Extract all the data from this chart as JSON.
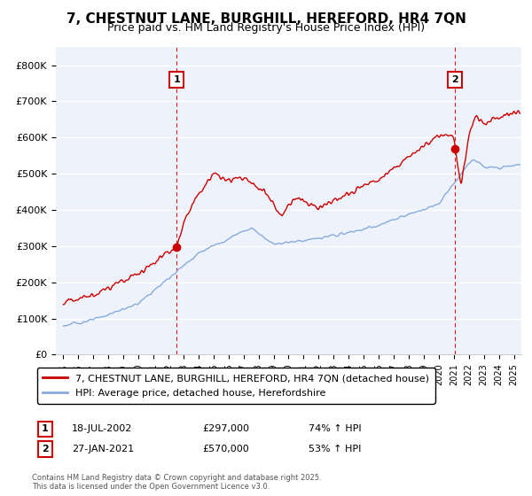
{
  "title_line1": "7, CHESTNUT LANE, BURGHILL, HEREFORD, HR4 7QN",
  "title_line2": "Price paid vs. HM Land Registry's House Price Index (HPI)",
  "ylim": [
    0,
    850000
  ],
  "yticks": [
    0,
    100000,
    200000,
    300000,
    400000,
    500000,
    600000,
    700000,
    800000
  ],
  "ytick_labels": [
    "£0",
    "£100K",
    "£200K",
    "£300K",
    "£400K",
    "£500K",
    "£600K",
    "£700K",
    "£800K"
  ],
  "xlim_start": 1994.5,
  "xlim_end": 2025.5,
  "background_color": "#eef3fb",
  "grid_color": "#ffffff",
  "house_color": "#cc0000",
  "hpi_color": "#88aadd",
  "sale1_date": 2002.54,
  "sale1_price": 297000,
  "sale1_label": "1",
  "sale2_date": 2021.07,
  "sale2_price": 570000,
  "sale2_label": "2",
  "legend_house": "7, CHESTNUT LANE, BURGHILL, HEREFORD, HR4 7QN (detached house)",
  "legend_hpi": "HPI: Average price, detached house, Herefordshire",
  "annotation1_date": "18-JUL-2002",
  "annotation1_price": "£297,000",
  "annotation1_hpi": "74% ↑ HPI",
  "annotation2_date": "27-JAN-2021",
  "annotation2_price": "£570,000",
  "annotation2_hpi": "53% ↑ HPI",
  "footer": "Contains HM Land Registry data © Crown copyright and database right 2025.\nThis data is licensed under the Open Government Licence v3.0.",
  "title_fontsize": 11,
  "subtitle_fontsize": 9,
  "tick_fontsize": 8,
  "legend_fontsize": 8,
  "annot_fontsize": 8
}
